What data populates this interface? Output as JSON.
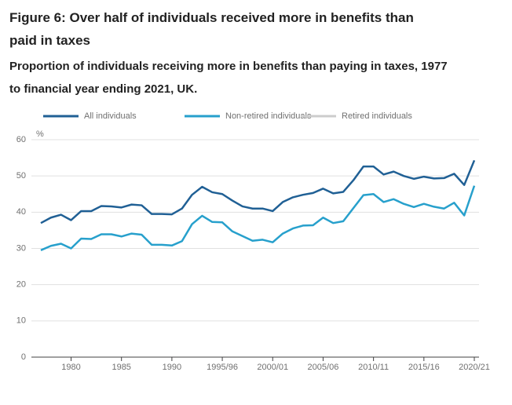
{
  "chart_data": {
    "type": "line",
    "title": "Figure 6: Over half of individuals received more in benefits than paid in taxes",
    "subtitle": "Proportion of individuals receiving more in benefits than paying in taxes, 1977 to financial year ending 2021, UK.",
    "y_unit": "%",
    "categories": [
      null,
      null,
      null,
      "1980",
      null,
      null,
      null,
      null,
      "1985",
      null,
      null,
      null,
      null,
      "1990",
      null,
      null,
      null,
      null,
      "1995/96",
      null,
      null,
      null,
      null,
      "2000/01",
      null,
      null,
      null,
      null,
      "2005/06",
      null,
      null,
      null,
      null,
      "2010/11",
      null,
      null,
      null,
      null,
      "2015/16",
      null,
      null,
      null,
      null,
      "2020/21"
    ],
    "series": [
      {
        "name": "All individuals",
        "color": "#206095",
        "visible": true,
        "values": [
          37,
          38.5,
          39.3,
          37.8,
          40.3,
          40.3,
          41.7,
          41.6,
          41.3,
          42.1,
          41.9,
          39.5,
          39.5,
          39.4,
          41,
          44.8,
          47,
          45.5,
          45,
          43.2,
          41.6,
          41,
          41,
          40.3,
          42.8,
          44.1,
          44.8,
          45.3,
          46.5,
          45.2,
          45.6,
          48.8,
          52.6,
          52.6,
          50.4,
          51.2,
          50,
          49.2,
          49.8,
          49.3,
          49.4,
          50.6,
          47.5,
          54.3
        ]
      },
      {
        "name": "Non-retired individuals",
        "color": "#27a0cc",
        "visible": true,
        "values": [
          29.5,
          30.7,
          31.3,
          30,
          32.7,
          32.6,
          33.9,
          33.9,
          33.3,
          34.1,
          33.8,
          31,
          31,
          30.8,
          32,
          36.7,
          39,
          37.3,
          37.2,
          34.7,
          33.4,
          32.1,
          32.4,
          31.7,
          34.1,
          35.5,
          36.3,
          36.4,
          38.5,
          37,
          37.5,
          41.1,
          44.7,
          45,
          42.8,
          43.6,
          42.3,
          41.4,
          42.3,
          41.5,
          41,
          42.6,
          39.1,
          47.3
        ]
      },
      {
        "name": "Retired individuals",
        "color": "#cccccc",
        "visible": false,
        "values": [
          null,
          null,
          null,
          null,
          null,
          null,
          null,
          null,
          null,
          null,
          null,
          null,
          null,
          null,
          null,
          null,
          null,
          null,
          null,
          null,
          null,
          null,
          null,
          null,
          null,
          null,
          null,
          null,
          null,
          null,
          null,
          null,
          null,
          null,
          null,
          null,
          null,
          null,
          null,
          null,
          null,
          null,
          null,
          null
        ]
      }
    ],
    "ylim": [
      0,
      60
    ],
    "yticks": [
      0,
      10,
      20,
      30,
      40,
      50,
      60
    ],
    "grid": true
  }
}
